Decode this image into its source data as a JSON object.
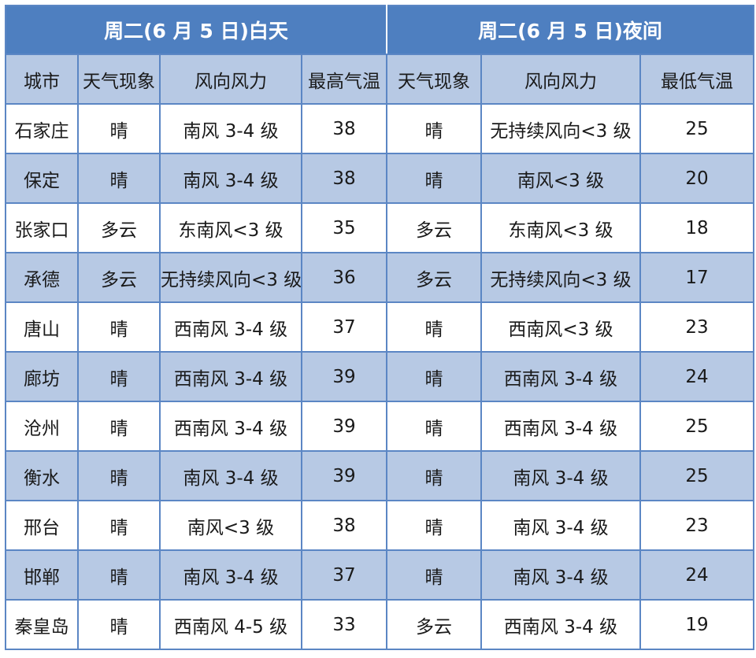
{
  "headers": {
    "day": "周二(6 月 5 日)白天",
    "night": "周二(6 月 5 日)夜间"
  },
  "columns": [
    "城市",
    "天气现象",
    "风向风力",
    "最高气温",
    "天气现象",
    "风向风力",
    "最低气温"
  ],
  "rows": [
    [
      "石家庄",
      "晴",
      "南风 3-4 级",
      "38",
      "晴",
      "无持续风向<3 级",
      "25"
    ],
    [
      "保定",
      "晴",
      "南风 3-4 级",
      "38",
      "晴",
      "南风<3 级",
      "20"
    ],
    [
      "张家口",
      "多云",
      "东南风<3 级",
      "35",
      "多云",
      "东南风<3 级",
      "18"
    ],
    [
      "承德",
      "多云",
      "无持续风向<3 级",
      "36",
      "多云",
      "无持续风向<3 级",
      "17"
    ],
    [
      "唐山",
      "晴",
      "西南风 3-4 级",
      "37",
      "晴",
      "西南风<3 级",
      "23"
    ],
    [
      "廊坊",
      "晴",
      "西南风 3-4 级",
      "39",
      "晴",
      "西南风 3-4 级",
      "24"
    ],
    [
      "沧州",
      "晴",
      "西南风 3-4 级",
      "39",
      "晴",
      "西南风 3-4 级",
      "25"
    ],
    [
      "衡水",
      "晴",
      "南风 3-4 级",
      "39",
      "晴",
      "南风 3-4 级",
      "25"
    ],
    [
      "邢台",
      "晴",
      "南风<3 级",
      "38",
      "晴",
      "南风 3-4 级",
      "23"
    ],
    [
      "邯郸",
      "晴",
      "南风 3-4 级",
      "37",
      "晴",
      "南风 3-4 级",
      "24"
    ],
    [
      "秦皇岛",
      "晴",
      "西南风 4-5 级",
      "33",
      "多云",
      "西南风 3-4 级",
      "19"
    ]
  ],
  "colors": {
    "header_bg": "#4e7fc0",
    "band_bg": "#b7c9e4",
    "border": "#5b86c4"
  }
}
